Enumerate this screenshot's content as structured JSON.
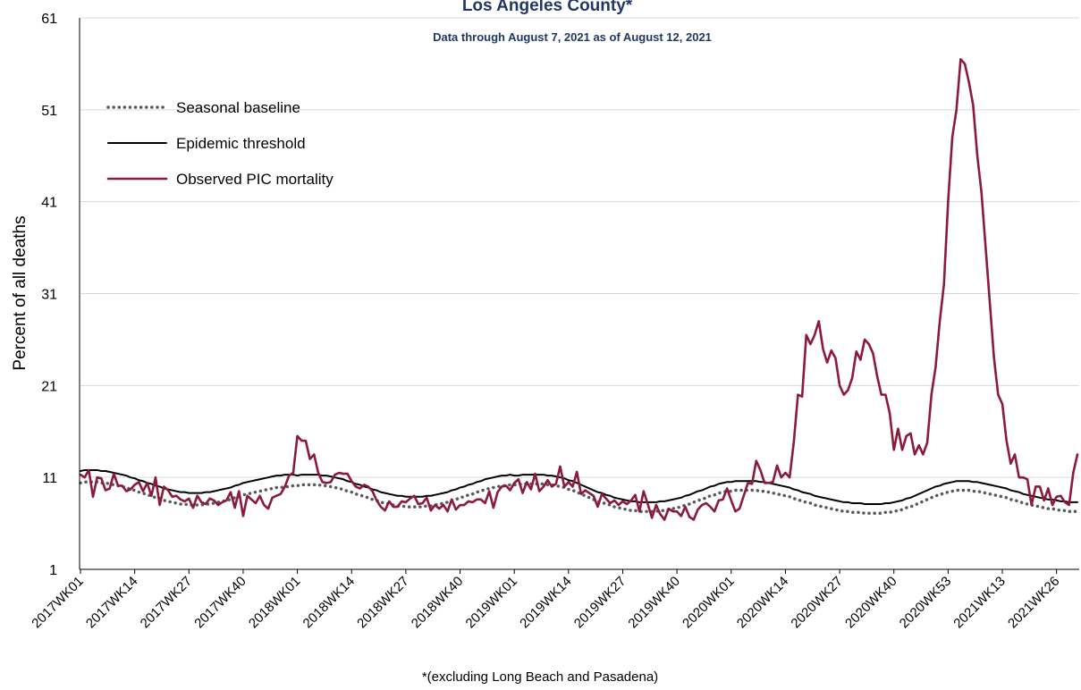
{
  "chart_data": {
    "type": "line",
    "title": "Los Angeles County*",
    "subtitle": "Data through August 7, 2021 as of August 12, 2021",
    "y_label": "Percent of all deaths",
    "x_label": "*(excluding Long Beach and Pasadena)",
    "ylim": [
      1,
      61
    ],
    "yticks": [
      1,
      11,
      21,
      31,
      41,
      51,
      61
    ],
    "grid": true,
    "legend": "upper-left",
    "categories": [
      "2017WK01",
      null,
      null,
      null,
      null,
      null,
      null,
      null,
      null,
      null,
      null,
      null,
      null,
      "2017WK14",
      null,
      null,
      null,
      null,
      null,
      null,
      null,
      null,
      null,
      null,
      null,
      null,
      "2017WK27",
      null,
      null,
      null,
      null,
      null,
      null,
      null,
      null,
      null,
      null,
      null,
      null,
      "2017WK40",
      null,
      null,
      null,
      null,
      null,
      null,
      null,
      null,
      null,
      null,
      null,
      null,
      "2018WK01",
      null,
      null,
      null,
      null,
      null,
      null,
      null,
      null,
      null,
      null,
      null,
      null,
      "2018WK14",
      null,
      null,
      null,
      null,
      null,
      null,
      null,
      null,
      null,
      null,
      null,
      null,
      "2018WK27",
      null,
      null,
      null,
      null,
      null,
      null,
      null,
      null,
      null,
      null,
      null,
      null,
      "2018WK40",
      null,
      null,
      null,
      null,
      null,
      null,
      null,
      null,
      null,
      null,
      null,
      null,
      "2019WK01",
      null,
      null,
      null,
      null,
      null,
      null,
      null,
      null,
      null,
      null,
      null,
      null,
      "2019WK14",
      null,
      null,
      null,
      null,
      null,
      null,
      null,
      null,
      null,
      null,
      null,
      null,
      "2019WK27",
      null,
      null,
      null,
      null,
      null,
      null,
      null,
      null,
      null,
      null,
      null,
      null,
      "2019WK40",
      null,
      null,
      null,
      null,
      null,
      null,
      null,
      null,
      null,
      null,
      null,
      null,
      "2020WK01",
      null,
      null,
      null,
      null,
      null,
      null,
      null,
      null,
      null,
      null,
      null,
      null,
      "2020WK14",
      null,
      null,
      null,
      null,
      null,
      null,
      null,
      null,
      null,
      null,
      null,
      null,
      "2020WK27",
      null,
      null,
      null,
      null,
      null,
      null,
      null,
      null,
      null,
      null,
      null,
      null,
      "2020WK40",
      null,
      null,
      null,
      null,
      null,
      null,
      null,
      null,
      null,
      null,
      null,
      null,
      "2020WK53",
      null,
      null,
      null,
      null,
      null,
      null,
      null,
      null,
      null,
      null,
      null,
      null,
      "2021WK13",
      null,
      null,
      null,
      null,
      null,
      null,
      null,
      null,
      null,
      null,
      null,
      null,
      "2021WK26",
      null,
      null,
      null,
      null,
      null
    ],
    "series": [
      {
        "name": "Seasonal baseline",
        "color": "#595959",
        "line_style": "dotted",
        "values": [
          10.4,
          10.5,
          10.5,
          10.5,
          10.5,
          10.4,
          10.4,
          10.3,
          10.2,
          10.1,
          10.0,
          9.9,
          9.7,
          9.6,
          9.4,
          9.3,
          9.1,
          9.0,
          8.8,
          8.7,
          8.5,
          8.4,
          8.3,
          8.2,
          8.1,
          8.1,
          8.0,
          8.0,
          8.0,
          8.0,
          8.1,
          8.1,
          8.2,
          8.3,
          8.4,
          8.5,
          8.6,
          8.8,
          8.9,
          9.1,
          9.2,
          9.3,
          9.4,
          9.5,
          9.6,
          9.7,
          9.8,
          9.9,
          9.9,
          10.0,
          10.0,
          10.1,
          10.1,
          10.2,
          10.2,
          10.2,
          10.2,
          10.2,
          10.1,
          10.1,
          10.0,
          9.9,
          9.8,
          9.7,
          9.5,
          9.4,
          9.2,
          9.1,
          8.9,
          8.8,
          8.6,
          8.5,
          8.3,
          8.2,
          8.1,
          8.0,
          7.9,
          7.9,
          7.8,
          7.8,
          7.8,
          7.8,
          7.8,
          7.9,
          7.9,
          8.0,
          8.1,
          8.2,
          8.3,
          8.5,
          8.6,
          8.8,
          8.9,
          9.1,
          9.2,
          9.4,
          9.5,
          9.7,
          9.8,
          9.9,
          10.0,
          10.1,
          10.1,
          10.2,
          10.2,
          10.2,
          10.3,
          10.3,
          10.3,
          10.3,
          10.3,
          10.3,
          10.2,
          10.2,
          10.1,
          10.0,
          9.9,
          9.7,
          9.6,
          9.4,
          9.2,
          9.0,
          8.8,
          8.6,
          8.4,
          8.3,
          8.1,
          8.0,
          7.8,
          7.7,
          7.6,
          7.5,
          7.4,
          7.4,
          7.3,
          7.3,
          7.3,
          7.3,
          7.3,
          7.4,
          7.4,
          7.5,
          7.6,
          7.7,
          7.8,
          8.0,
          8.1,
          8.3,
          8.5,
          8.6,
          8.8,
          9.0,
          9.1,
          9.3,
          9.4,
          9.5,
          9.5,
          9.6,
          9.6,
          9.6,
          9.6,
          9.6,
          9.6,
          9.5,
          9.5,
          9.4,
          9.3,
          9.2,
          9.1,
          9.0,
          8.9,
          8.7,
          8.6,
          8.4,
          8.3,
          8.2,
          8.0,
          7.9,
          7.8,
          7.7,
          7.6,
          7.5,
          7.4,
          7.3,
          7.3,
          7.2,
          7.2,
          7.2,
          7.1,
          7.1,
          7.1,
          7.1,
          7.1,
          7.2,
          7.2,
          7.3,
          7.4,
          7.5,
          7.7,
          7.8,
          8.0,
          8.2,
          8.4,
          8.6,
          8.8,
          9.0,
          9.1,
          9.3,
          9.4,
          9.5,
          9.6,
          9.6,
          9.6,
          9.6,
          9.5,
          9.5,
          9.4,
          9.3,
          9.2,
          9.1,
          9.0,
          8.9,
          8.8,
          8.6,
          8.5,
          8.4,
          8.2,
          8.1,
          8.0,
          7.9,
          7.8,
          7.7,
          7.6,
          7.6,
          7.5,
          7.4,
          7.4,
          7.3,
          7.3,
          7.3
        ]
      },
      {
        "name": "Epidemic threshold",
        "color": "#000000",
        "line_style": "solid",
        "values": [
          11.7,
          11.8,
          11.8,
          11.8,
          11.8,
          11.7,
          11.7,
          11.6,
          11.5,
          11.4,
          11.3,
          11.2,
          11.0,
          10.9,
          10.7,
          10.6,
          10.4,
          10.3,
          10.1,
          10.0,
          9.8,
          9.7,
          9.6,
          9.5,
          9.4,
          9.4,
          9.3,
          9.3,
          9.3,
          9.3,
          9.4,
          9.4,
          9.5,
          9.6,
          9.7,
          9.8,
          9.9,
          10.1,
          10.2,
          10.4,
          10.5,
          10.6,
          10.7,
          10.8,
          10.9,
          11.0,
          11.1,
          11.2,
          11.2,
          11.3,
          11.3,
          11.3,
          11.2,
          11.3,
          11.3,
          11.3,
          11.3,
          11.3,
          11.2,
          11.2,
          11.1,
          11.0,
          10.9,
          10.8,
          10.6,
          10.5,
          10.3,
          10.2,
          10.0,
          9.9,
          9.7,
          9.6,
          9.4,
          9.3,
          9.2,
          9.1,
          9.0,
          9.0,
          8.9,
          8.9,
          8.9,
          8.9,
          8.9,
          9.0,
          9.0,
          9.1,
          9.2,
          9.3,
          9.4,
          9.6,
          9.7,
          9.9,
          10.0,
          10.2,
          10.3,
          10.5,
          10.6,
          10.8,
          10.9,
          11.0,
          11.1,
          11.2,
          11.2,
          11.3,
          11.2,
          11.2,
          11.3,
          11.3,
          11.3,
          11.3,
          11.3,
          11.3,
          11.2,
          11.2,
          11.1,
          11.0,
          10.9,
          10.7,
          10.6,
          10.4,
          10.2,
          10.0,
          9.8,
          9.6,
          9.4,
          9.3,
          9.1,
          9.0,
          8.8,
          8.7,
          8.6,
          8.5,
          8.4,
          8.4,
          8.3,
          8.3,
          8.3,
          8.3,
          8.3,
          8.4,
          8.4,
          8.5,
          8.6,
          8.7,
          8.8,
          9.0,
          9.1,
          9.3,
          9.5,
          9.6,
          9.8,
          10.0,
          10.1,
          10.3,
          10.4,
          10.5,
          10.5,
          10.6,
          10.6,
          10.6,
          10.6,
          10.6,
          10.6,
          10.5,
          10.5,
          10.4,
          10.3,
          10.2,
          10.1,
          10.0,
          9.9,
          9.7,
          9.6,
          9.4,
          9.3,
          9.2,
          9.0,
          8.9,
          8.8,
          8.7,
          8.6,
          8.5,
          8.4,
          8.3,
          8.3,
          8.2,
          8.2,
          8.2,
          8.1,
          8.1,
          8.1,
          8.1,
          8.1,
          8.2,
          8.2,
          8.3,
          8.4,
          8.5,
          8.7,
          8.8,
          9.0,
          9.2,
          9.4,
          9.6,
          9.8,
          10.0,
          10.1,
          10.3,
          10.4,
          10.5,
          10.6,
          10.6,
          10.6,
          10.6,
          10.5,
          10.5,
          10.4,
          10.3,
          10.2,
          10.1,
          10.0,
          9.9,
          9.8,
          9.6,
          9.5,
          9.4,
          9.2,
          9.1,
          9.0,
          8.9,
          8.8,
          8.7,
          8.6,
          8.6,
          8.5,
          8.4,
          8.4,
          8.3,
          8.3,
          8.3
        ]
      },
      {
        "name": "Observed PIC mortality",
        "color": "#8b1a3c",
        "line_style": "solid",
        "values": [
          11.3,
          11.0,
          11.8,
          8.9,
          11.0,
          10.9,
          9.6,
          9.8,
          11.4,
          10.1,
          10.1,
          9.5,
          9.7,
          10.2,
          10.5,
          9.5,
          10.4,
          9.0,
          11.0,
          8.0,
          10.0,
          9.6,
          8.9,
          9.0,
          8.6,
          8.4,
          8.7,
          7.7,
          9.0,
          8.3,
          8.1,
          8.7,
          8.5,
          8.0,
          8.3,
          8.5,
          9.4,
          7.7,
          9.5,
          6.8,
          9.0,
          8.6,
          8.2,
          9.0,
          8.0,
          7.6,
          8.8,
          9.0,
          9.2,
          10.0,
          11.2,
          11.5,
          15.5,
          15.0,
          15.0,
          13.0,
          13.5,
          11.5,
          10.5,
          10.4,
          10.5,
          11.3,
          11.5,
          11.4,
          11.4,
          10.6,
          10.0,
          9.8,
          10.2,
          10.0,
          9.5,
          8.5,
          7.8,
          7.4,
          8.4,
          7.8,
          7.8,
          8.4,
          8.3,
          8.7,
          9.0,
          8.1,
          8.2,
          8.8,
          7.4,
          8.0,
          7.6,
          8.0,
          7.3,
          8.6,
          7.5,
          8.0,
          8.0,
          8.4,
          8.3,
          8.6,
          8.6,
          8.2,
          9.5,
          7.7,
          9.4,
          10.0,
          10.1,
          9.6,
          10.4,
          10.8,
          9.3,
          10.5,
          9.7,
          11.4,
          9.5,
          10.0,
          10.7,
          10.0,
          10.3,
          12.2,
          10.0,
          10.5,
          10.0,
          11.6,
          9.2,
          9.6,
          9.3,
          9.0,
          7.8,
          9.2,
          8.7,
          8.2,
          8.5,
          8.0,
          8.4,
          8.1,
          8.5,
          9.1,
          7.3,
          9.5,
          8.1,
          6.6,
          8.0,
          7.0,
          6.4,
          7.6,
          7.3,
          7.3,
          6.8,
          7.8,
          6.7,
          6.4,
          7.5,
          8.0,
          8.2,
          7.8,
          7.3,
          8.5,
          8.6,
          9.8,
          8.5,
          7.3,
          7.6,
          9.0,
          10.4,
          10.3,
          12.8,
          11.8,
          10.4,
          10.4,
          10.5,
          12.3,
          11.0,
          11.5,
          11.0,
          14.8,
          20.0,
          19.8,
          26.5,
          25.5,
          26.5,
          28.0,
          25.0,
          23.5,
          24.8,
          24.0,
          21.0,
          20.0,
          20.5,
          21.8,
          24.7,
          23.8,
          26.0,
          25.5,
          24.5,
          22.0,
          20.0,
          20.0,
          18.0,
          14.0,
          16.3,
          14.0,
          15.5,
          15.8,
          13.5,
          14.5,
          13.5,
          14.8,
          20.0,
          23.0,
          28.0,
          32.0,
          41.0,
          48.0,
          51.0,
          56.5,
          56.0,
          54.0,
          51.5,
          46.0,
          42.0,
          36.0,
          30.0,
          24.0,
          20.0,
          19.0,
          15.0,
          12.5,
          13.5,
          11.0,
          11.0,
          10.8,
          8.0,
          10.0,
          10.0,
          8.5,
          9.8,
          8.0,
          8.9,
          9.0,
          8.3,
          8.0,
          11.5,
          13.5
        ]
      }
    ]
  }
}
